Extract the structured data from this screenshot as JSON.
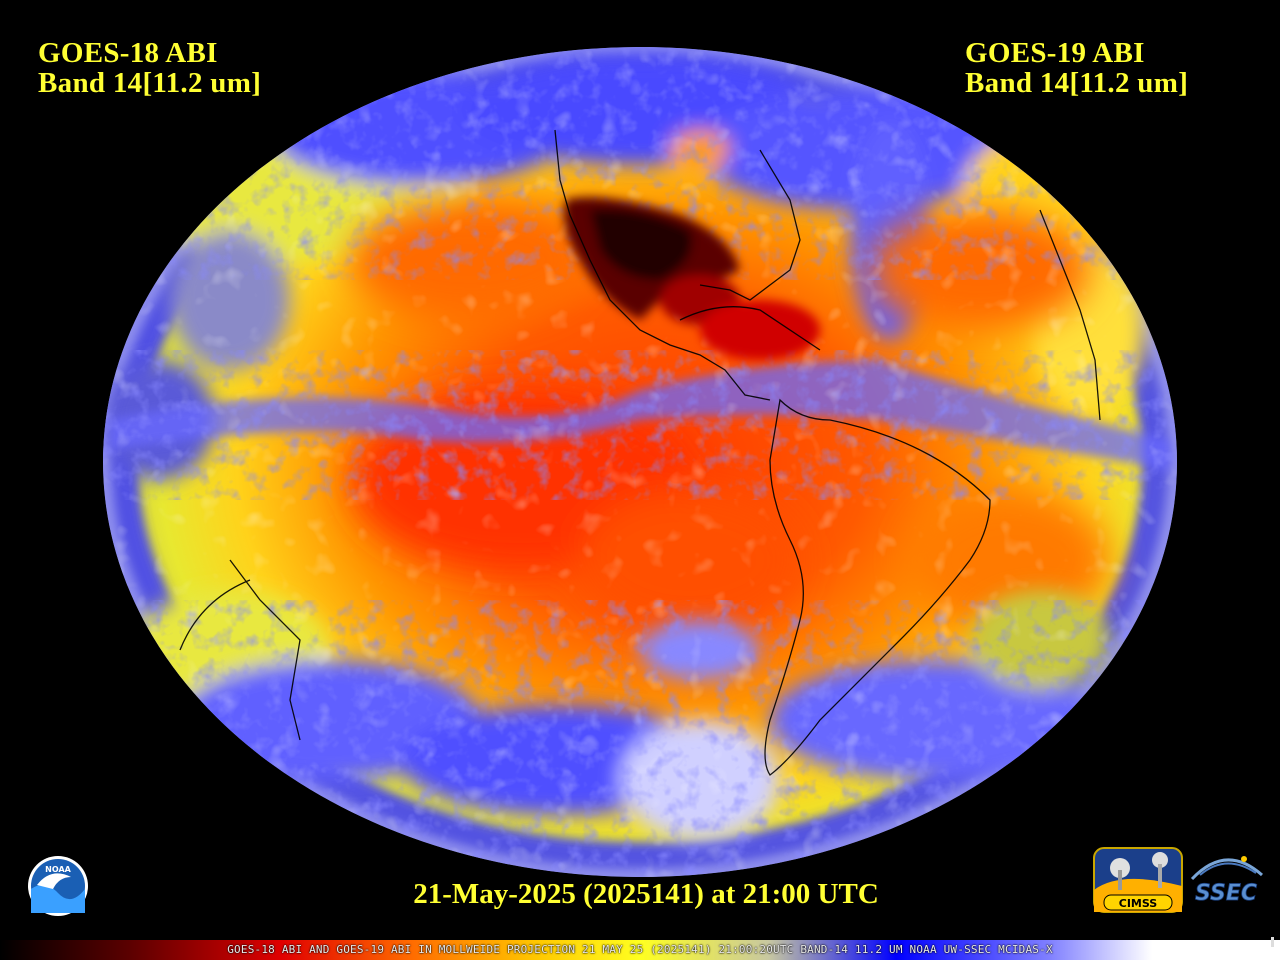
{
  "header": {
    "left": {
      "line1": "GOES-18 ABI",
      "line2": "Band 14[11.2 um]"
    },
    "right": {
      "line1": "GOES-19 ABI",
      "line2": "Band 14[11.2 um]"
    }
  },
  "timestamp": "21-May-2025 (2025141) at 21:00 UTC",
  "footer_strip": "GOES-18 ABI AND GOES-19 ABI IN MOLLWEIDE PROJECTION 21 MAY 25 (2025141) 21:00:20UTC BAND-14 11.2 UM NOAA UW-SSEC MCIDAS-X",
  "logos": {
    "noaa": "NOAA",
    "cimss": "CIMSS",
    "ssec": "SSEC"
  },
  "colors": {
    "background": "#000000",
    "label": "#ffff33",
    "cold_cloud": "#ffffff",
    "cloud_blue": "#3a3aff",
    "mid": "#f0f020",
    "warm": "#ff5a00",
    "hot": "#e00000",
    "hottest_land": "#300000"
  }
}
